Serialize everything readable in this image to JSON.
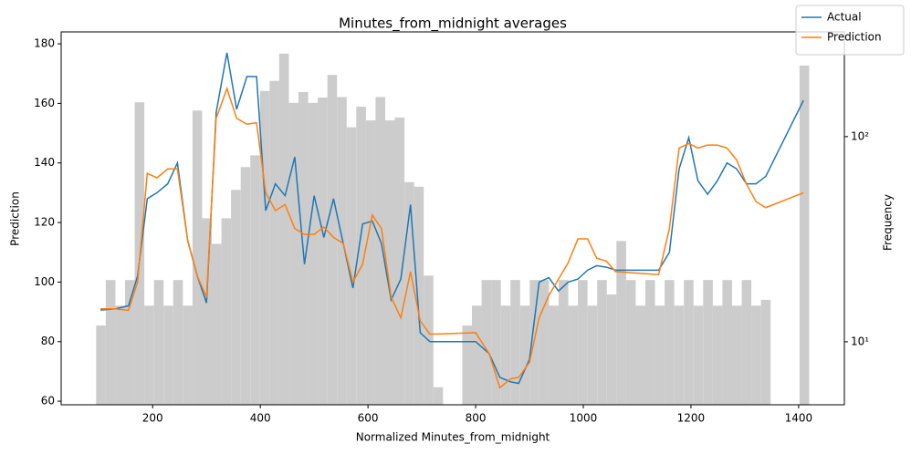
{
  "chart_data": {
    "type": "line",
    "title": "Minutes_from_midnight averages",
    "xlabel": "Normalized Minutes_from_midnight",
    "ylabel": "Prediction",
    "y2label": "Frequency",
    "xlim": [
      30,
      1485
    ],
    "ylim": [
      58.8,
      184
    ],
    "y2lim": [
      4.93,
      324
    ],
    "y2log": true,
    "xticks": [
      200,
      400,
      600,
      800,
      1000,
      1200,
      1400
    ],
    "yticks": [
      60,
      80,
      100,
      120,
      140,
      160,
      180
    ],
    "y2ticks": [
      {
        "value": 10,
        "label": "10¹"
      },
      {
        "value": 100,
        "label": "10²"
      }
    ],
    "legend": "upper right",
    "x": [
      103,
      130,
      155,
      172,
      190,
      208,
      228,
      246,
      265,
      283,
      300,
      318,
      338,
      356,
      375,
      393,
      410,
      428,
      446,
      464,
      482,
      500,
      518,
      536,
      554,
      572,
      590,
      608,
      625,
      643,
      661,
      679,
      697,
      715,
      800,
      825,
      845,
      865,
      880,
      900,
      918,
      936,
      954,
      972,
      990,
      1008,
      1025,
      1043,
      1060,
      1140,
      1160,
      1178,
      1196,
      1213,
      1231,
      1249,
      1267,
      1285,
      1303,
      1321,
      1339,
      1409
    ],
    "series": [
      {
        "name": "Actual",
        "color": "#1f77b4",
        "values": [
          90.6,
          91,
          92,
          102,
          128,
          130,
          133,
          140,
          114,
          102,
          93,
          157,
          177,
          158,
          169,
          169,
          124,
          133,
          129,
          142,
          106,
          129,
          115,
          128,
          113,
          98,
          119.5,
          120.5,
          113,
          94,
          101,
          126,
          83,
          80,
          80,
          76,
          68,
          66.5,
          66,
          74,
          100,
          101.5,
          97,
          100,
          101,
          104,
          105.5,
          105,
          104,
          104,
          110,
          138,
          148.5,
          134,
          129.5,
          134,
          140,
          138,
          133,
          133,
          135.5,
          161
        ]
      },
      {
        "name": "Prediction",
        "color": "#ff7f0e",
        "values": [
          91,
          91,
          90.5,
          100,
          136.5,
          135,
          138,
          138,
          114,
          102,
          95,
          155,
          165,
          155,
          153,
          153.5,
          130,
          124,
          126,
          118,
          116,
          116,
          118.5,
          115,
          113,
          100,
          106,
          122.5,
          118,
          95,
          88,
          103.5,
          87,
          82.5,
          83,
          76,
          64.5,
          67.5,
          68,
          73,
          88,
          95.5,
          101,
          106.5,
          114.5,
          114.5,
          108,
          107,
          103.5,
          102.5,
          118,
          145,
          146.5,
          145,
          146,
          146,
          145,
          141,
          133,
          127,
          125,
          130
        ]
      }
    ],
    "histogram": {
      "color": "#cccccc",
      "axis": "y2",
      "bins": [
        95.0,
        112.9,
        130.8,
        148.7,
        166.6,
        184.5,
        202.4,
        220.3,
        238.2,
        256.1,
        274.0,
        291.9,
        309.8,
        327.7,
        345.6,
        363.5,
        381.4,
        399.3,
        417.2,
        435.1,
        453.0,
        470.9,
        488.8,
        506.7,
        524.6,
        542.5,
        560.4,
        578.3,
        596.2,
        614.1,
        632.0,
        649.9,
        667.8,
        685.7,
        703.6,
        721.5,
        739.4,
        757.3,
        775.2,
        793.1,
        811.0,
        828.9,
        846.8,
        864.7,
        882.6,
        900.5,
        918.4,
        936.3,
        954.2,
        972.1,
        990.0,
        1007.9,
        1025.8,
        1043.7,
        1061.6,
        1079.5,
        1097.4,
        1115.3,
        1133.2,
        1151.1,
        1169.0,
        1186.9,
        1204.8,
        1222.7,
        1240.6,
        1258.5,
        1276.4,
        1294.3,
        1312.2,
        1330.1,
        1348.0,
        1365.9,
        1383.8,
        1401.7,
        1419.6
      ],
      "counts": [
        12,
        20,
        15,
        20,
        147,
        15,
        20,
        15,
        20,
        15,
        134,
        40,
        30,
        40,
        55,
        71,
        81,
        167,
        187,
        254,
        146,
        165,
        146,
        155,
        200,
        156,
        111,
        140,
        120,
        156,
        120,
        124,
        60,
        57,
        21,
        6,
        0,
        0,
        12,
        15,
        20,
        20,
        15,
        20,
        15,
        20,
        20,
        15,
        20,
        15,
        20,
        15,
        20,
        17,
        31,
        20,
        15,
        20,
        15,
        20,
        15,
        20,
        15,
        20,
        15,
        20,
        15,
        20,
        15,
        16,
        0,
        0,
        0,
        222
      ]
    }
  }
}
